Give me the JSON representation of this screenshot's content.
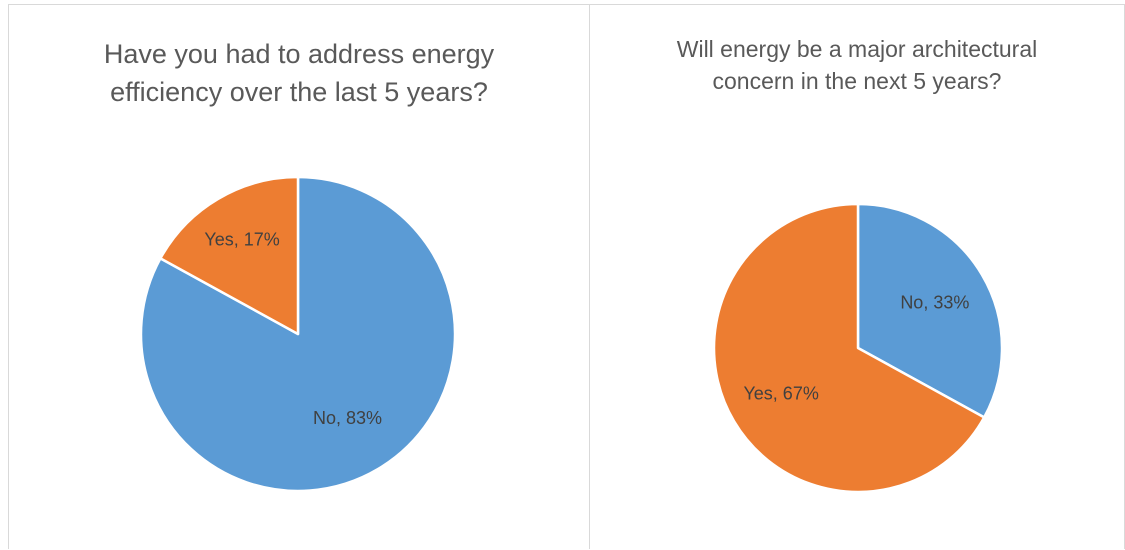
{
  "chart_data": [
    {
      "type": "pie",
      "title": "Have you had to address energy efficiency over the last 5 years?",
      "categories": [
        "No",
        "Yes"
      ],
      "values": [
        83,
        17
      ],
      "labels": [
        "No, 83%",
        "Yes, 17%"
      ],
      "colors": [
        "#5B9BD5",
        "#ED7D31"
      ],
      "start_angle": "12 o'clock, clockwise",
      "legend": "none"
    },
    {
      "type": "pie",
      "title": "Will energy be a major architectural concern in the next 5 years?",
      "categories": [
        "No",
        "Yes"
      ],
      "values": [
        33,
        67
      ],
      "labels": [
        "No, 33%",
        "Yes, 67%"
      ],
      "colors": [
        "#5B9BD5",
        "#ED7D31"
      ],
      "start_angle": "12 o'clock, clockwise",
      "legend": "none"
    }
  ]
}
